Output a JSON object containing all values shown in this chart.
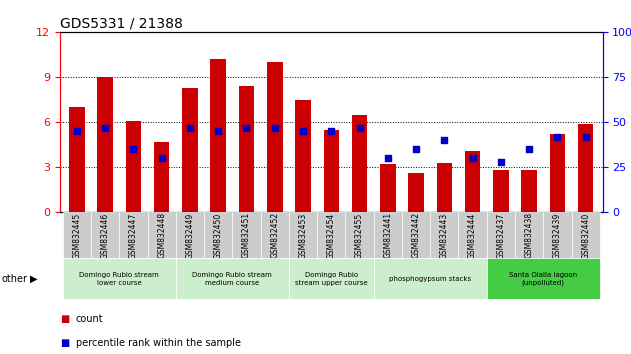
{
  "title": "GDS5331 / 21388",
  "categories": [
    "GSM832445",
    "GSM832446",
    "GSM832447",
    "GSM832448",
    "GSM832449",
    "GSM832450",
    "GSM832451",
    "GSM832452",
    "GSM832453",
    "GSM832454",
    "GSM832455",
    "GSM832441",
    "GSM832442",
    "GSM832443",
    "GSM832444",
    "GSM832437",
    "GSM832438",
    "GSM832439",
    "GSM832440"
  ],
  "count_values": [
    7.0,
    9.0,
    6.1,
    4.7,
    8.3,
    10.2,
    8.4,
    10.0,
    7.5,
    5.5,
    6.5,
    3.2,
    2.6,
    3.3,
    4.1,
    2.8,
    2.8,
    5.2,
    5.9
  ],
  "percentile_values": [
    45,
    47,
    35,
    30,
    47,
    45,
    47,
    47,
    45,
    45,
    47,
    30,
    35,
    40,
    30,
    28,
    35,
    42,
    42
  ],
  "ylim_left": [
    0,
    12
  ],
  "ylim_right": [
    0,
    100
  ],
  "yticks_left": [
    0,
    3,
    6,
    9,
    12
  ],
  "yticks_right": [
    0,
    25,
    50,
    75,
    100
  ],
  "bar_color": "#cc0000",
  "dot_color": "#0000cc",
  "bg_color": "#ffffff",
  "group_labels": [
    "Domingo Rubio stream\nlower course",
    "Domingo Rubio stream\nmedium course",
    "Domingo Rubio\nstream upper course",
    "phosphogypsum stacks",
    "Santa Olalla lagoon\n(unpolluted)"
  ],
  "group_ranges": [
    [
      0,
      4
    ],
    [
      4,
      8
    ],
    [
      8,
      11
    ],
    [
      11,
      15
    ],
    [
      15,
      19
    ]
  ],
  "group_colors_bg": [
    "#cceecc",
    "#cceecc",
    "#cceecc",
    "#cceecc",
    "#44cc44"
  ],
  "xticklabel_bg": "#cccccc",
  "legend_items": [
    [
      "count",
      "#cc0000"
    ],
    [
      "percentile rank within the sample",
      "#0000cc"
    ]
  ]
}
